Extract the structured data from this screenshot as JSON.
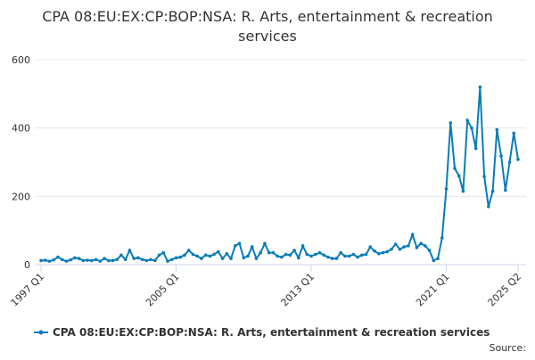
{
  "chart_data": {
    "type": "line",
    "title": "CPA 08:EU:EX:CP:BOP:NSA: R. Arts, entertainment & recreation services",
    "categories": [
      "1997 Q1",
      null,
      null,
      null,
      null,
      null,
      null,
      null,
      null,
      null,
      null,
      null,
      null,
      null,
      null,
      null,
      null,
      null,
      null,
      null,
      null,
      null,
      null,
      null,
      null,
      null,
      null,
      null,
      null,
      null,
      null,
      null,
      "2005 Q1",
      null,
      null,
      null,
      null,
      null,
      null,
      null,
      null,
      null,
      null,
      null,
      null,
      null,
      null,
      null,
      null,
      null,
      null,
      null,
      null,
      null,
      null,
      null,
      null,
      null,
      null,
      null,
      null,
      null,
      null,
      null,
      "2013 Q1",
      null,
      null,
      null,
      null,
      null,
      null,
      null,
      null,
      null,
      null,
      null,
      null,
      null,
      null,
      null,
      null,
      null,
      null,
      null,
      null,
      null,
      null,
      null,
      null,
      null,
      null,
      null,
      null,
      null,
      null,
      null,
      "2021 Q1",
      null,
      null,
      null,
      null,
      null,
      null,
      null,
      null,
      null,
      null,
      null,
      null,
      null,
      null,
      null,
      null,
      "2025 Q2"
    ],
    "series": [
      {
        "name": "CPA 08:EU:EX:CP:BOP:NSA: R. Arts, entertainment & recreation services",
        "color": "#0a7cb9",
        "values": [
          12,
          13,
          10,
          14,
          22,
          15,
          10,
          14,
          20,
          18,
          12,
          13,
          12,
          15,
          10,
          18,
          12,
          12,
          15,
          28,
          15,
          42,
          18,
          20,
          15,
          12,
          15,
          12,
          28,
          35,
          10,
          15,
          20,
          22,
          28,
          42,
          30,
          25,
          18,
          28,
          25,
          30,
          38,
          18,
          32,
          18,
          55,
          62,
          20,
          25,
          52,
          18,
          35,
          62,
          35,
          35,
          25,
          22,
          30,
          28,
          42,
          20,
          55,
          30,
          25,
          30,
          35,
          28,
          22,
          18,
          18,
          35,
          25,
          25,
          30,
          22,
          28,
          30,
          52,
          40,
          32,
          35,
          38,
          45,
          60,
          45,
          52,
          55,
          88,
          50,
          62,
          55,
          42,
          12,
          18,
          78,
          222,
          415,
          282,
          260,
          215,
          422,
          400,
          340,
          520,
          258,
          170,
          215,
          395,
          318,
          218,
          300,
          385,
          308
        ]
      }
    ],
    "ylim": [
      0,
      600
    ],
    "yticks": [
      0,
      200,
      400,
      600
    ],
    "grid": true,
    "source": "Source:"
  }
}
